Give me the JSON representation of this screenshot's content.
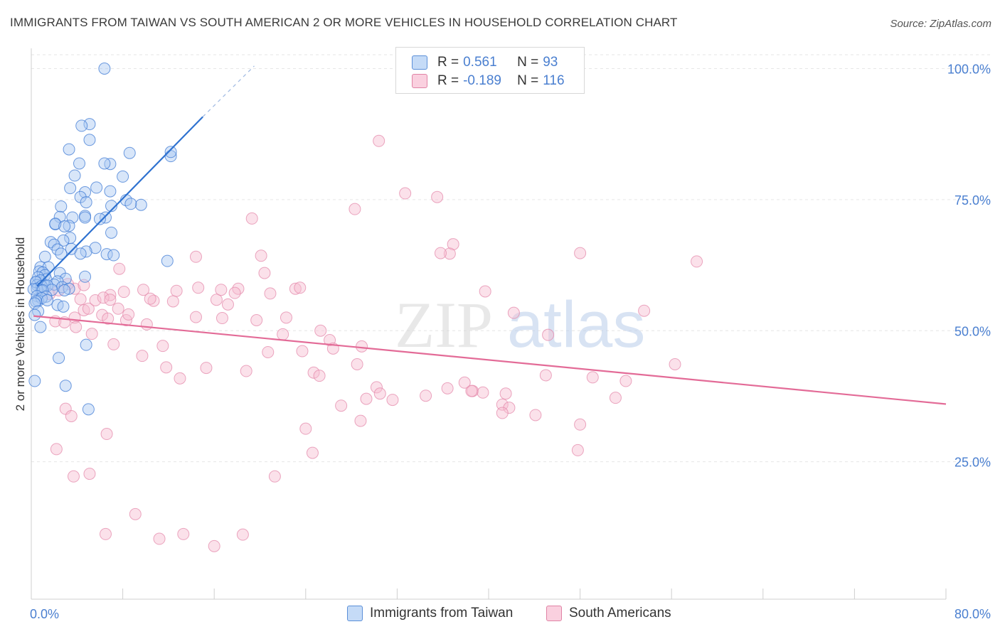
{
  "title": "IMMIGRANTS FROM TAIWAN VS SOUTH AMERICAN 2 OR MORE VEHICLES IN HOUSEHOLD CORRELATION CHART",
  "source": "Source: ZipAtlas.com",
  "watermark": {
    "zip": "ZIP",
    "atlas": "atlas"
  },
  "legend": {
    "r_label": "R =",
    "n_label": "N =",
    "rows": [
      {
        "r": "0.561",
        "n": "93",
        "color": "#a9c8f2",
        "edge": "#5b8fd8"
      },
      {
        "r": "-0.189",
        "n": "116",
        "color": "#f7bcd0",
        "edge": "#e083a5"
      }
    ]
  },
  "colors": {
    "blue_fill": "#a9c8f2",
    "blue_edge": "#3d7ad4",
    "blue_line": "#2f72d0",
    "pink_fill": "#f7bcd0",
    "pink_edge": "#e48aab",
    "pink_line": "#e36b97",
    "grid": "#e6e6e6",
    "tick_label": "#4a7fd0"
  },
  "chart_data": {
    "type": "scatter",
    "title": "IMMIGRANTS FROM TAIWAN VS SOUTH AMERICAN 2 OR MORE VEHICLES IN HOUSEHOLD CORRELATION CHART",
    "xlabel": "",
    "ylabel": "2 or more Vehicles in Household",
    "xlim": [
      0,
      80
    ],
    "ylim": [
      0,
      102
    ],
    "x_tick_labels": [
      "0.0%",
      "80.0%"
    ],
    "y_ticks": [
      25,
      50,
      75,
      100
    ],
    "y_tick_labels": [
      "25.0%",
      "50.0%",
      "75.0%",
      "100.0%"
    ],
    "grid": true,
    "legend_position": "top-center",
    "series": [
      {
        "name": "Immigrants from Taiwan",
        "color": "#a9c8f2",
        "trend": {
          "x": [
            0.5,
            15.0
          ],
          "y": [
            58.5,
            90.8
          ],
          "dashed_to": [
            19.5,
            100.5
          ]
        },
        "x": [
          6.4,
          5.1,
          4.4,
          5.1,
          3.3,
          4.2,
          8.6,
          6.9,
          6.4,
          3.8,
          8.0,
          12.2,
          12.2,
          3.4,
          5.7,
          4.7,
          6.9,
          4.3,
          2.6,
          7.0,
          4.8,
          8.3,
          9.6,
          4.7,
          8.7,
          2.5,
          3.6,
          4.7,
          6.5,
          6.0,
          2.1,
          7.0,
          2.1,
          3.3,
          2.9,
          1.7,
          5.6,
          3.4,
          11.9,
          2.8,
          2.0,
          4.8,
          2.3,
          3.5,
          6.6,
          2.6,
          4.3,
          7.2,
          1.2,
          4.7,
          0.8,
          1.5,
          0.7,
          2.5,
          1.0,
          0.4,
          1.2,
          3.0,
          1.3,
          2.3,
          0.6,
          0.8,
          0.5,
          2.0,
          0.4,
          1.2,
          0.9,
          1.4,
          2.7,
          0.5,
          0.9,
          0.2,
          3.3,
          2.9,
          1.8,
          1.0,
          0.5,
          1.3,
          0.6,
          0.9,
          0.4,
          2.3,
          2.8,
          0.3,
          4.8,
          0.8,
          2.4,
          0.6,
          3.0,
          1.4,
          0.3,
          5.0,
          0.3
        ],
        "y": [
          100.0,
          89.4,
          89.1,
          86.4,
          84.6,
          81.9,
          83.9,
          81.8,
          81.9,
          79.6,
          79.4,
          83.3,
          84.1,
          77.2,
          77.3,
          76.4,
          76.6,
          75.5,
          73.7,
          73.8,
          74.5,
          74.9,
          74.0,
          71.9,
          74.2,
          71.7,
          71.6,
          71.6,
          71.6,
          71.3,
          70.3,
          68.7,
          70.4,
          70.0,
          69.9,
          66.9,
          65.8,
          67.7,
          63.3,
          67.2,
          66.4,
          65.1,
          65.5,
          65.6,
          64.6,
          64.7,
          64.7,
          64.4,
          64.1,
          60.3,
          62.1,
          62.1,
          61.3,
          61.0,
          61.1,
          59.2,
          60.6,
          59.9,
          59.8,
          59.4,
          60.2,
          59.6,
          58.7,
          58.8,
          59.3,
          58.6,
          58.5,
          58.6,
          58.3,
          58.0,
          57.6,
          57.9,
          58.0,
          57.7,
          57.8,
          57.7,
          56.6,
          56.5,
          55.7,
          56.2,
          55.6,
          54.9,
          54.6,
          55.2,
          47.3,
          50.7,
          44.8,
          53.7,
          39.5,
          55.8,
          53.0,
          35.0,
          40.4
        ]
      },
      {
        "name": "South Americans",
        "color": "#f7bcd0",
        "trend": {
          "x": [
            0.2,
            80.0
          ],
          "y": [
            52.8,
            36.0
          ]
        },
        "x": [
          30.4,
          32.7,
          35.5,
          28.3,
          19.3,
          36.9,
          48.0,
          36.6,
          35.8,
          14.4,
          20.1,
          58.2,
          20.4,
          23.1,
          23.5,
          20.9,
          39.7,
          6.9,
          7.7,
          9.8,
          12.7,
          16.2,
          17.2,
          22.3,
          3.8,
          4.6,
          4.6,
          10.7,
          1.6,
          42.2,
          5.0,
          2.1,
          3.8,
          6.2,
          6.7,
          7.6,
          8.3,
          10.1,
          11.5,
          14.4,
          16.7,
          18.1,
          22.0,
          26.1,
          28.5,
          45.2,
          56.3,
          53.6,
          2.9,
          3.9,
          5.3,
          7.2,
          8.5,
          9.7,
          11.8,
          13.0,
          15.3,
          18.8,
          23.7,
          24.7,
          25.2,
          26.4,
          30.2,
          38.6,
          41.2,
          41.8,
          47.8,
          51.1,
          2.4,
          3.2,
          4.3,
          5.6,
          6.3,
          6.9,
          8.1,
          10.4,
          12.4,
          14.6,
          16.6,
          17.8,
          19.7,
          20.7,
          25.3,
          28.9,
          30.5,
          36.4,
          38.5,
          41.2,
          44.1,
          48.0,
          2.2,
          3.7,
          5.1,
          6.5,
          9.1,
          11.2,
          13.3,
          16.0,
          18.5,
          21.3,
          24.0,
          27.1,
          28.8,
          31.6,
          34.5,
          37.9,
          39.5,
          41.5,
          45.0,
          49.1,
          52.0,
          3.0,
          3.5,
          6.6,
          24.6,
          29.3
        ],
        "y": [
          86.2,
          76.2,
          75.5,
          73.2,
          71.4,
          66.5,
          64.8,
          64.7,
          64.8,
          64.1,
          64.3,
          63.2,
          61.0,
          58.0,
          58.2,
          57.1,
          57.5,
          56.8,
          61.8,
          57.8,
          57.6,
          55.9,
          55.0,
          52.5,
          58.0,
          58.7,
          53.9,
          55.7,
          57.0,
          53.4,
          54.2,
          51.8,
          52.5,
          53.0,
          52.3,
          54.2,
          52.0,
          51.2,
          47.1,
          52.6,
          52.4,
          58.0,
          49.3,
          48.2,
          43.6,
          49.2,
          43.6,
          53.8,
          51.6,
          50.7,
          49.4,
          47.4,
          53.1,
          45.2,
          43.0,
          40.9,
          42.9,
          42.3,
          46.1,
          42.0,
          41.4,
          46.6,
          39.2,
          38.5,
          35.9,
          35.3,
          27.2,
          37.2,
          57.7,
          58.9,
          56.0,
          55.8,
          56.3,
          55.9,
          57.4,
          56.1,
          55.6,
          58.2,
          57.8,
          57.2,
          52.0,
          45.9,
          50.0,
          47.0,
          38.0,
          39.0,
          38.5,
          34.3,
          33.9,
          32.1,
          27.4,
          22.2,
          22.7,
          11.2,
          15.0,
          10.3,
          11.2,
          8.9,
          11.1,
          22.2,
          31.3,
          35.7,
          32.8,
          36.8,
          37.6,
          40.1,
          38.2,
          38.0,
          41.5,
          41.1,
          40.4,
          35.1,
          33.7,
          30.3,
          26.7,
          37.0
        ]
      }
    ]
  },
  "bottom_legend": [
    {
      "label": "Immigrants from Taiwan",
      "color": "#a9c8f2",
      "edge": "#5b8fd8"
    },
    {
      "label": "South Americans",
      "color": "#f7bcd0",
      "edge": "#e083a5"
    }
  ]
}
